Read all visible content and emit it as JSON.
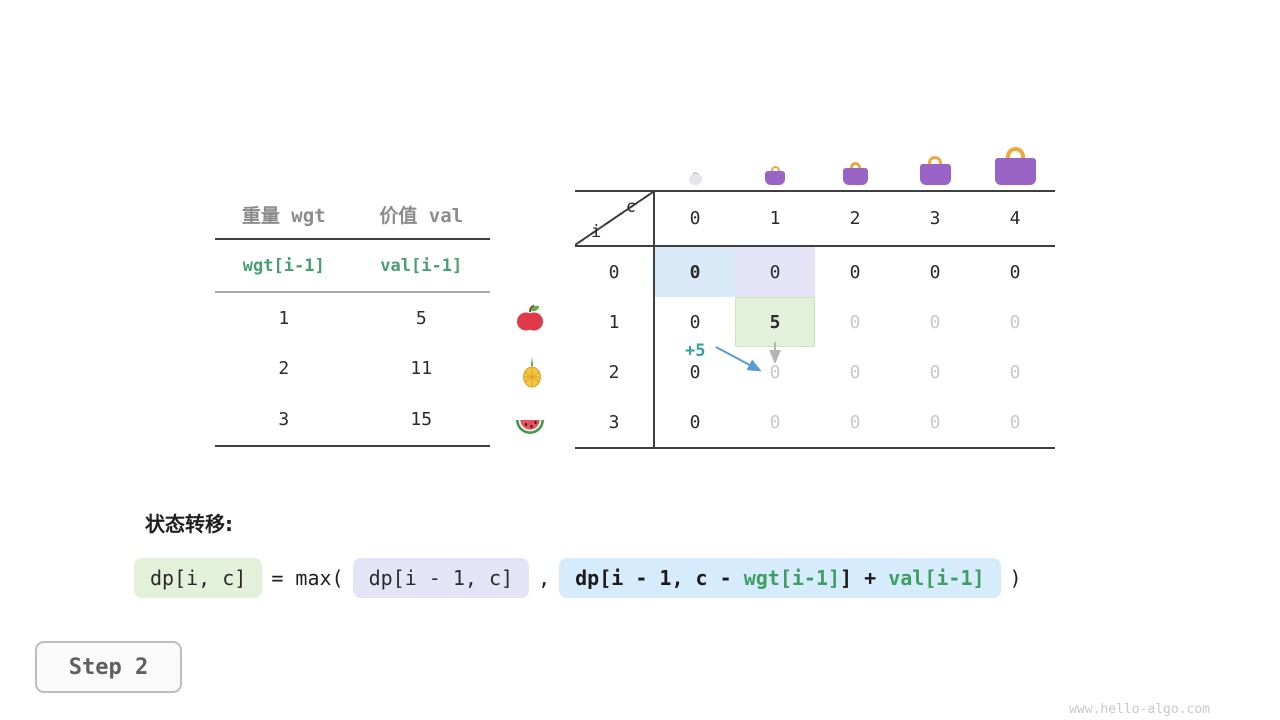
{
  "items": {
    "headers": [
      "重量 wgt",
      "价值 val"
    ],
    "var_row": [
      "wgt[i-1]",
      "val[i-1]"
    ],
    "rows": [
      {
        "wgt": "1",
        "val": "5",
        "fruit": "apple-icon"
      },
      {
        "wgt": "2",
        "val": "11",
        "fruit": "pineapple-icon"
      },
      {
        "wgt": "3",
        "val": "15",
        "fruit": "watermelon-icon"
      }
    ]
  },
  "dp": {
    "corner": {
      "col_var": "c",
      "row_var": "i"
    },
    "cols": [
      "0",
      "1",
      "2",
      "3",
      "4"
    ],
    "rows": [
      {
        "label": "0",
        "cells": [
          {
            "v": "0",
            "cls": "hl-blue bold"
          },
          {
            "v": "0",
            "cls": "hl-purple"
          },
          {
            "v": "0"
          },
          {
            "v": "0"
          },
          {
            "v": "0"
          }
        ]
      },
      {
        "label": "1",
        "cells": [
          {
            "v": "0"
          },
          {
            "v": "5",
            "cls": "hl-green bold"
          },
          {
            "v": "0",
            "cls": "faded"
          },
          {
            "v": "0",
            "cls": "faded"
          },
          {
            "v": "0",
            "cls": "faded"
          }
        ]
      },
      {
        "label": "2",
        "cells": [
          {
            "v": "0"
          },
          {
            "v": "0",
            "cls": "faded"
          },
          {
            "v": "0",
            "cls": "faded"
          },
          {
            "v": "0",
            "cls": "faded"
          },
          {
            "v": "0",
            "cls": "faded"
          }
        ]
      },
      {
        "label": "3",
        "cells": [
          {
            "v": "0"
          },
          {
            "v": "0",
            "cls": "faded"
          },
          {
            "v": "0",
            "cls": "faded"
          },
          {
            "v": "0",
            "cls": "faded"
          },
          {
            "v": "0",
            "cls": "faded"
          }
        ]
      }
    ],
    "annotation": "+5",
    "bags": [
      {
        "name": "bag-capacity-0-icon",
        "body": "#e4e4ea",
        "handle": "#c9c9d2"
      },
      {
        "name": "bag-capacity-1-icon",
        "body": "#9a63c6",
        "handle": "#eda93f"
      },
      {
        "name": "bag-capacity-2-icon",
        "body": "#9a63c6",
        "handle": "#eda93f"
      },
      {
        "name": "bag-capacity-3-icon",
        "body": "#9a63c6",
        "handle": "#eda93f"
      },
      {
        "name": "bag-capacity-4-icon",
        "body": "#9a63c6",
        "handle": "#eda93f"
      }
    ]
  },
  "formula": {
    "label": "状态转移:",
    "lhs": "dp[i, c]",
    "eq": "= max(",
    "arg1": "dp[i - 1, c]",
    "comma": ",",
    "arg2_segments": [
      {
        "t": "dp[i - 1, c - ",
        "c": "dark"
      },
      {
        "t": "wgt[i-1]",
        "c": "green"
      },
      {
        "t": "] + ",
        "c": "dark"
      },
      {
        "t": "val[i-1]",
        "c": "green"
      }
    ],
    "close": ")"
  },
  "step": {
    "label": "Step 2"
  },
  "watermark": "www.hello-algo.com",
  "colors": {
    "highlight_blue": "#d9e9f8",
    "highlight_purple": "#e5e4f7",
    "highlight_green": "#e3f0da",
    "green_text": "#47a072",
    "annotation_teal": "#2fa39e",
    "arrow_blue": "#5b9bd5",
    "arrow_gray": "#b5b5b5",
    "bag_purple": "#9a63c6",
    "bag_handle_gold": "#eda93f"
  }
}
